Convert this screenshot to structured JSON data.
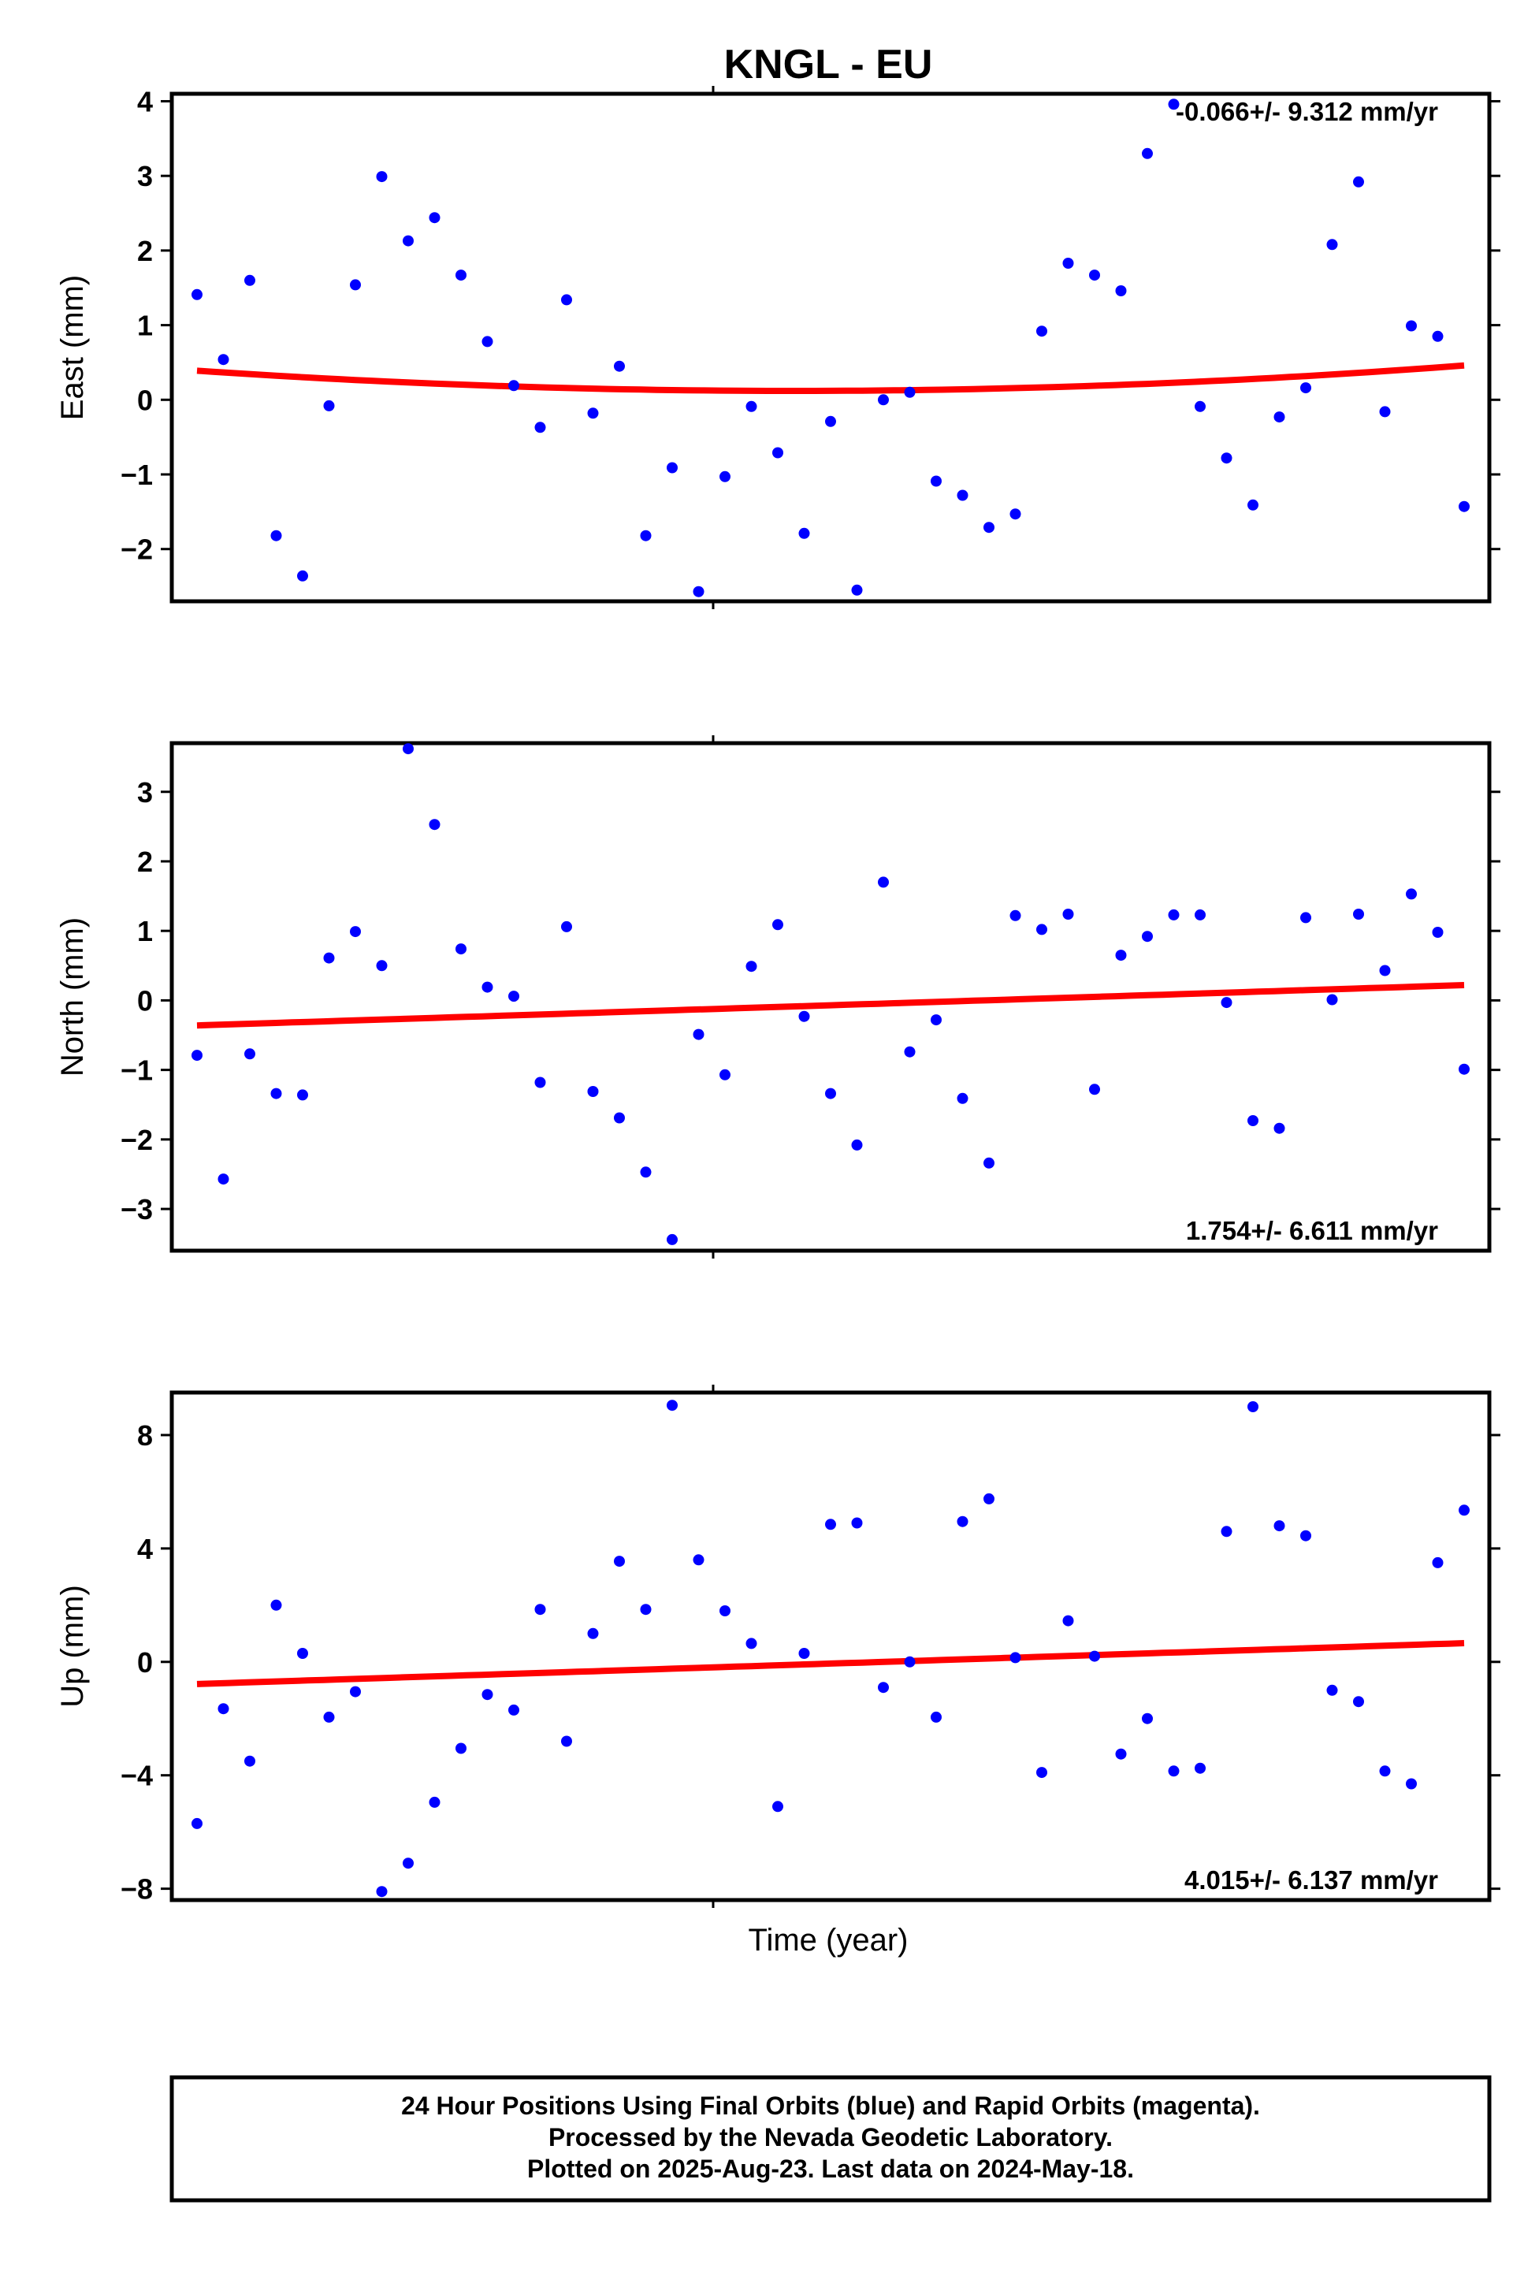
{
  "title": "KNGL - EU",
  "xlabel": "Time (year)",
  "caption": [
    "24 Hour Positions Using Final Orbits (blue) and Rapid Orbits (magenta).",
    "Processed by the Nevada Geodetic Laboratory.",
    "Plotted on 2025-Aug-23. Last data on 2024-May-18."
  ],
  "colors": {
    "points": "#0000ff",
    "fit": "#ff0000",
    "frame": "#000000"
  },
  "chart_data": [
    {
      "type": "scatter",
      "ylabel": "East (mm)",
      "rate_text": "-0.066+/- 9.312 mm/yr",
      "rate_position": "top-right",
      "ylim": [
        -2.7,
        4.1
      ],
      "yticks": [
        4,
        3,
        2,
        1,
        0,
        -1,
        -2
      ],
      "ytick_labels": [
        "4",
        "3",
        "2",
        "1",
        "0",
        "−1",
        "−2"
      ],
      "series": [
        {
          "marker": "dot",
          "values": [
            1.41,
            0.54,
            1.6,
            -1.82,
            -2.36,
            -0.08,
            1.54,
            2.99,
            2.13,
            2.44,
            1.67,
            0.78,
            0.19,
            -0.37,
            1.34,
            -0.18,
            0.45,
            -1.82,
            -0.91,
            -2.57,
            -1.03,
            -0.09,
            -0.71,
            -1.79,
            -0.29,
            -2.55,
            0.0,
            0.1,
            -1.09,
            -1.28,
            -1.71,
            -1.53,
            0.92,
            1.83,
            1.67,
            1.46,
            3.3,
            3.96,
            -0.09,
            -0.78,
            -1.41,
            -0.23,
            0.16,
            2.08,
            2.92,
            -0.16,
            0.99,
            0.85,
            -1.43
          ]
        },
        {
          "kind": "fit",
          "values": [
            0.39,
            0.12,
            0.46
          ]
        }
      ]
    },
    {
      "type": "scatter",
      "ylabel": "North (mm)",
      "rate_text": "1.754+/- 6.611 mm/yr",
      "rate_position": "bottom-right",
      "ylim": [
        -3.6,
        3.7
      ],
      "yticks": [
        3,
        2,
        1,
        0,
        -1,
        -2,
        -3
      ],
      "ytick_labels": [
        "3",
        "2",
        "1",
        "0",
        "−1",
        "−2",
        "−3"
      ],
      "series": [
        {
          "marker": "dot",
          "values": [
            -0.79,
            -2.57,
            -0.77,
            -1.34,
            -1.36,
            0.61,
            0.99,
            0.5,
            3.62,
            2.53,
            0.74,
            0.19,
            0.06,
            -1.18,
            1.06,
            -1.31,
            -1.69,
            -2.47,
            -3.44,
            -0.49,
            -1.07,
            0.49,
            1.09,
            -0.23,
            -1.34,
            -2.08,
            1.7,
            -0.74,
            -0.28,
            -1.41,
            -2.34,
            1.22,
            1.02,
            1.24,
            -1.28,
            0.65,
            0.92,
            1.23,
            1.23,
            -0.03,
            -1.73,
            -1.84,
            1.19,
            0.01,
            1.24,
            0.43,
            1.53,
            0.98,
            -0.99
          ]
        },
        {
          "kind": "fit",
          "values": [
            -0.36,
            0.22
          ]
        }
      ]
    },
    {
      "type": "scatter",
      "ylabel": "Up (mm)",
      "rate_text": "4.015+/- 6.137 mm/yr",
      "rate_position": "bottom-right",
      "ylim": [
        -8.4,
        9.5
      ],
      "yticks": [
        8,
        4,
        0,
        -4,
        -8
      ],
      "ytick_labels": [
        "8",
        "4",
        "0",
        "−4",
        "−8"
      ],
      "series": [
        {
          "marker": "dot",
          "values": [
            -5.7,
            -1.65,
            -3.5,
            2.0,
            0.3,
            -1.95,
            -1.05,
            -8.1,
            -7.1,
            -4.95,
            -3.05,
            -1.15,
            -1.7,
            1.85,
            -2.8,
            1.0,
            3.55,
            1.85,
            9.05,
            3.6,
            1.8,
            0.65,
            -5.1,
            0.3,
            4.85,
            4.9,
            -0.9,
            0.0,
            -1.95,
            4.95,
            5.75,
            0.15,
            -3.9,
            1.45,
            0.2,
            -3.25,
            -2.0,
            -3.85,
            -3.75,
            4.6,
            9.0,
            4.8,
            4.45,
            -1.0,
            -1.4,
            -3.85,
            -4.3,
            3.5,
            5.35
          ]
        },
        {
          "kind": "fit",
          "values": [
            -0.78,
            0.66
          ]
        }
      ]
    }
  ]
}
